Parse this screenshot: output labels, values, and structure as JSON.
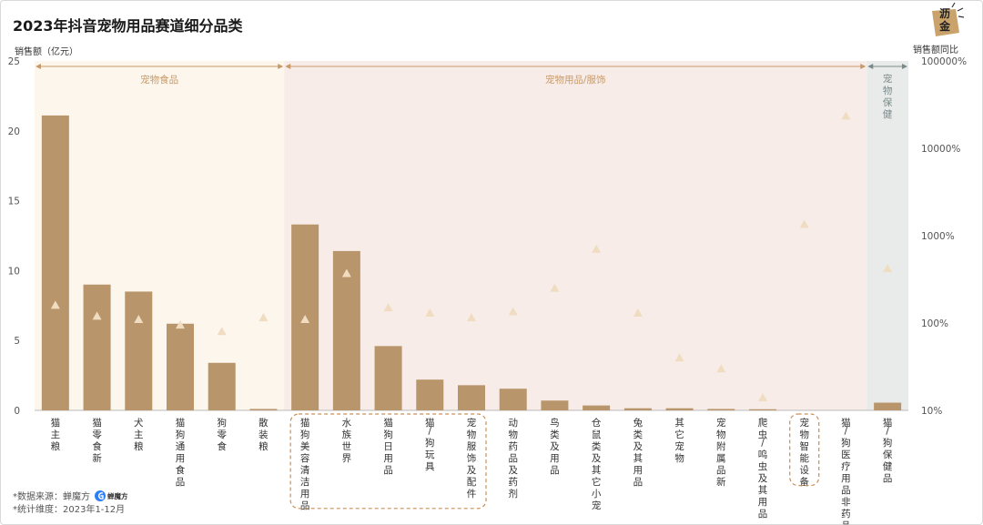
{
  "title": "2023年抖音宠物用品赛道细分品类",
  "logo": {
    "line1": "沥",
    "line2": "金"
  },
  "chart_data": {
    "type": "bar",
    "title": "2023年抖音宠物用品赛道细分品类",
    "ylabel": "销售额（亿元）",
    "y2label": "销售额同比",
    "ylim": [
      0,
      25
    ],
    "yticks": [
      0,
      5,
      10,
      15,
      20,
      25
    ],
    "y2_scale": "log",
    "y2lim": [
      10,
      100000
    ],
    "y2ticks": [
      "10%",
      "100%",
      "1000%",
      "10000%",
      "100000%"
    ],
    "y2tickValues": [
      10,
      100,
      1000,
      10000,
      100000
    ],
    "categories": [
      "猫主粮",
      "猫零食新",
      "犬主粮",
      "猫狗通用食品",
      "狗零食",
      "散装粮",
      "猫狗美容清洁用品",
      "水族世界",
      "猫狗日用品",
      "猫/狗玩具",
      "宠物服饰及配件",
      "动物药品及药剂",
      "鸟类及用品",
      "仓鼠类及其它小宠",
      "兔类及其用品",
      "其它宠物",
      "宠物附属品新",
      "爬虫/鸣虫及其用品",
      "宠物智能设备",
      "猫/狗医疗用品非药品",
      "猫/狗保健品"
    ],
    "series": [
      {
        "name": "销售额",
        "kind": "bar",
        "color": "#b8956a",
        "values": [
          21.1,
          9.0,
          8.5,
          6.2,
          3.4,
          0.1,
          13.3,
          11.4,
          4.6,
          2.2,
          1.8,
          1.55,
          0.7,
          0.35,
          0.15,
          0.15,
          0.1,
          0.08,
          0.0,
          0.0,
          0.55
        ]
      },
      {
        "name": "销售额同比",
        "kind": "marker",
        "axis": "right",
        "color": "#f0dcc0",
        "values": [
          160,
          120,
          110,
          95,
          80,
          115,
          110,
          370,
          150,
          130,
          115,
          135,
          250,
          700,
          130,
          40,
          30,
          14,
          1350,
          23500,
          420
        ]
      }
    ],
    "sections": [
      {
        "label": "宠物食品",
        "start": 0,
        "end": 5,
        "bg": "#fcf6ec",
        "color": "#c89a6a"
      },
      {
        "label": "宠物用品/服饰",
        "start": 6,
        "end": 19,
        "bg": "#f7ece7",
        "color": "#c89a6a"
      },
      {
        "label": "宠物保健",
        "start": 20,
        "end": 20,
        "bg": "#e9ebea",
        "color": "#7a8a8a",
        "vertical": true
      }
    ],
    "highlight_groups": [
      {
        "start": 6,
        "end": 10
      },
      {
        "start": 18,
        "end": 18
      }
    ]
  },
  "footnotes": {
    "source_prefix": "*数据来源：",
    "source_name": "蝉魔方",
    "brand": "蝉魔方",
    "period": "*统计维度：2023年1-12月"
  }
}
